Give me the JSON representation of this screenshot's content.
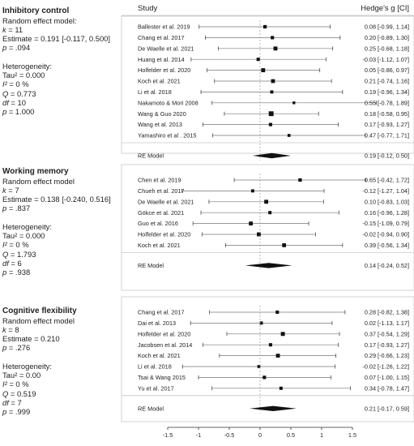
{
  "header": {
    "study_col": "Study",
    "effect_col": "Hedge's g [CI]"
  },
  "sections": [
    {
      "key": "inhibitory",
      "title": "Inhibitory control",
      "model_label": "Random effect model:",
      "k_label": "k",
      "k_value": "11",
      "estimate": "Estimate = 0.191 [-0.117, 0.500]",
      "p_label": "p",
      "p_value": ".094",
      "het_title": "Heterogeneity:",
      "tau": "Tau² = 0.000",
      "i2_label": "I²",
      "i2_value": "0 %",
      "q_label": "Q",
      "q_value": "0.773",
      "df_label": "df",
      "df_value": "10",
      "p2_label": "p",
      "p2_value": "1.000"
    },
    {
      "key": "working",
      "title": "Working memory",
      "model_label": "Random effect model",
      "k_label": "k",
      "k_value": "7",
      "estimate": "Estimate = 0.138 [-0.240, 0.516]",
      "p_label": "p",
      "p_value": ".837",
      "het_title": "Heterogeneity:",
      "tau": "Tau² = 0.000",
      "i2_label": "I²",
      "i2_value": "0 %",
      "q_label": "Q",
      "q_value": "1.793",
      "df_label": "df",
      "df_value": "6",
      "p2_label": "p",
      "p2_value": ".938"
    },
    {
      "key": "cognitive",
      "title": "Cognitive flexibility",
      "model_label": "Random effect model",
      "k_label": "k",
      "k_value": "8",
      "estimate": "Estimate = 0.210",
      "p_label": "p",
      "p_value": ".276",
      "het_title": "Heterogeneity:",
      "tau": "Tau² = 0.00",
      "i2_label": "I²",
      "i2_value": "0 %",
      "q_label": "Q",
      "q_value": "0.519",
      "df_label": "df",
      "df_value": "7",
      "p2_label": "p",
      "p2_value": ".999"
    }
  ],
  "chart_data": {
    "type": "forest",
    "x_ticks": [
      -1.5,
      -1,
      -0.5,
      0,
      0.5,
      1,
      1.5
    ],
    "x_tick_labels": [
      "-1.5",
      "-1",
      "-0.5",
      "0",
      "0.5",
      "1",
      "1.5"
    ],
    "xlim": [
      -1.5,
      1.5
    ],
    "reference_line": 0,
    "groups": [
      {
        "name": "Inhibitory control",
        "studies": [
          {
            "study": "Ballester et al. 2019",
            "g": 0.08,
            "lo": -0.99,
            "hi": 1.14,
            "label": "0.08 [-0.99, 1.14]"
          },
          {
            "study": "Chang et al. 2017",
            "g": 0.2,
            "lo": -0.89,
            "hi": 1.3,
            "label": "0.20 [-0.89, 1.30]"
          },
          {
            "study": "De Waelle et al. 2021",
            "g": 0.25,
            "lo": -0.68,
            "hi": 1.18,
            "label": "0.25 [-0.68, 1.18]"
          },
          {
            "study": "Huang et al. 2014",
            "g": -0.03,
            "lo": -1.12,
            "hi": 1.07,
            "label": "-0.03 [-1.12, 1.07]"
          },
          {
            "study": "Holfelder et al. 2020",
            "g": 0.05,
            "lo": -0.86,
            "hi": 0.97,
            "label": "0.05 [-0.86, 0.97]"
          },
          {
            "study": "Koch et al. 2021",
            "g": 0.21,
            "lo": -0.74,
            "hi": 1.16,
            "label": "0.21 [-0.74, 1.16]"
          },
          {
            "study": "Li et al. 2018",
            "g": 0.19,
            "lo": -0.96,
            "hi": 1.34,
            "label": "0.19 [-0.96, 1.34]"
          },
          {
            "study": "Nakamoto & Mori 2008",
            "g": 0.55,
            "lo": -0.78,
            "hi": 1.89,
            "label": "0.55 [-0.78, 1.89]"
          },
          {
            "study": "Wang & Guo 2020",
            "g": 0.18,
            "lo": -0.58,
            "hi": 0.95,
            "label": "0.18 [-0.58, 0.95]"
          },
          {
            "study": "Wang et al. 2013",
            "g": 0.17,
            "lo": -0.93,
            "hi": 1.27,
            "label": "0.17 [-0.93, 1.27]"
          },
          {
            "study": "Yamashiro et al . 2015",
            "g": 0.47,
            "lo": -0.77,
            "hi": 1.71,
            "label": "0.47 [-0.77, 1.71]"
          }
        ],
        "model": {
          "study": "RE Model",
          "g": 0.19,
          "lo": -0.12,
          "hi": 0.5,
          "label": "0.19 [-0.12, 0.50]"
        }
      },
      {
        "name": "Working memory",
        "studies": [
          {
            "study": "Chen et al. 2019",
            "g": 0.65,
            "lo": -0.42,
            "hi": 1.72,
            "label": "0.65 [-0.42, 1.72]"
          },
          {
            "study": "Chueh et al. 2017",
            "g": -0.12,
            "lo": -1.27,
            "hi": 1.04,
            "label": "-0.12 [-1.27, 1.04]"
          },
          {
            "study": "De Waelle et al. 2021",
            "g": 0.1,
            "lo": -0.83,
            "hi": 1.03,
            "label": "0.10 [-0.83, 1.03]"
          },
          {
            "study": "Gökce et al. 2021",
            "g": 0.16,
            "lo": -0.96,
            "hi": 1.28,
            "label": "0.16 [-0.96, 1.28]"
          },
          {
            "study": "Guo et al. 2016",
            "g": -0.15,
            "lo": -1.09,
            "hi": 0.79,
            "label": "-0.15 [-1.09, 0.79]"
          },
          {
            "study": "Holfelder et al. 2020",
            "g": -0.02,
            "lo": -0.94,
            "hi": 0.9,
            "label": "-0.02 [-0.94, 0.90]"
          },
          {
            "study": "Koch et al. 2021",
            "g": 0.39,
            "lo": -0.56,
            "hi": 1.34,
            "label": "0.39 [-0.56, 1.34]"
          }
        ],
        "model": {
          "study": "RE Model",
          "g": 0.14,
          "lo": -0.24,
          "hi": 0.52,
          "label": "0.14 [-0.24, 0.52]"
        }
      },
      {
        "name": "Cognitive flexibility",
        "studies": [
          {
            "study": "Chang et al. 2017",
            "g": 0.28,
            "lo": -0.82,
            "hi": 1.38,
            "label": "0.28 [-0.82, 1.38]"
          },
          {
            "study": "Dai et al. 2013",
            "g": 0.02,
            "lo": -1.13,
            "hi": 1.17,
            "label": "0.02 [-1.13, 1.17]"
          },
          {
            "study": "Holfelder et al. 2020",
            "g": 0.37,
            "lo": -0.54,
            "hi": 1.29,
            "label": "0.37 [-0.54, 1.29]"
          },
          {
            "study": "Jacobsen et al. 2014",
            "g": 0.17,
            "lo": -0.93,
            "hi": 1.27,
            "label": "0.17 [-0.93, 1.27]"
          },
          {
            "study": "Koch et al. 2021",
            "g": 0.29,
            "lo": -0.66,
            "hi": 1.23,
            "label": "0.29 [-0.66, 1.23]"
          },
          {
            "study": "Li et al. 2018",
            "g": -0.02,
            "lo": -1.26,
            "hi": 1.22,
            "label": "-0.02 [-1.26, 1.22]"
          },
          {
            "study": "Tsai & Wang 2015",
            "g": 0.07,
            "lo": -1.0,
            "hi": 1.15,
            "label": "0.07 [-1.00, 1.15]"
          },
          {
            "study": "Yu et al. 2017",
            "g": 0.34,
            "lo": -0.78,
            "hi": 1.47,
            "label": "0.34 [-0.78, 1.47]"
          }
        ],
        "model": {
          "study": "RE Model",
          "g": 0.21,
          "lo": -0.17,
          "hi": 0.59,
          "label": "0.21 [-0.17, 0.59]"
        }
      }
    ]
  }
}
